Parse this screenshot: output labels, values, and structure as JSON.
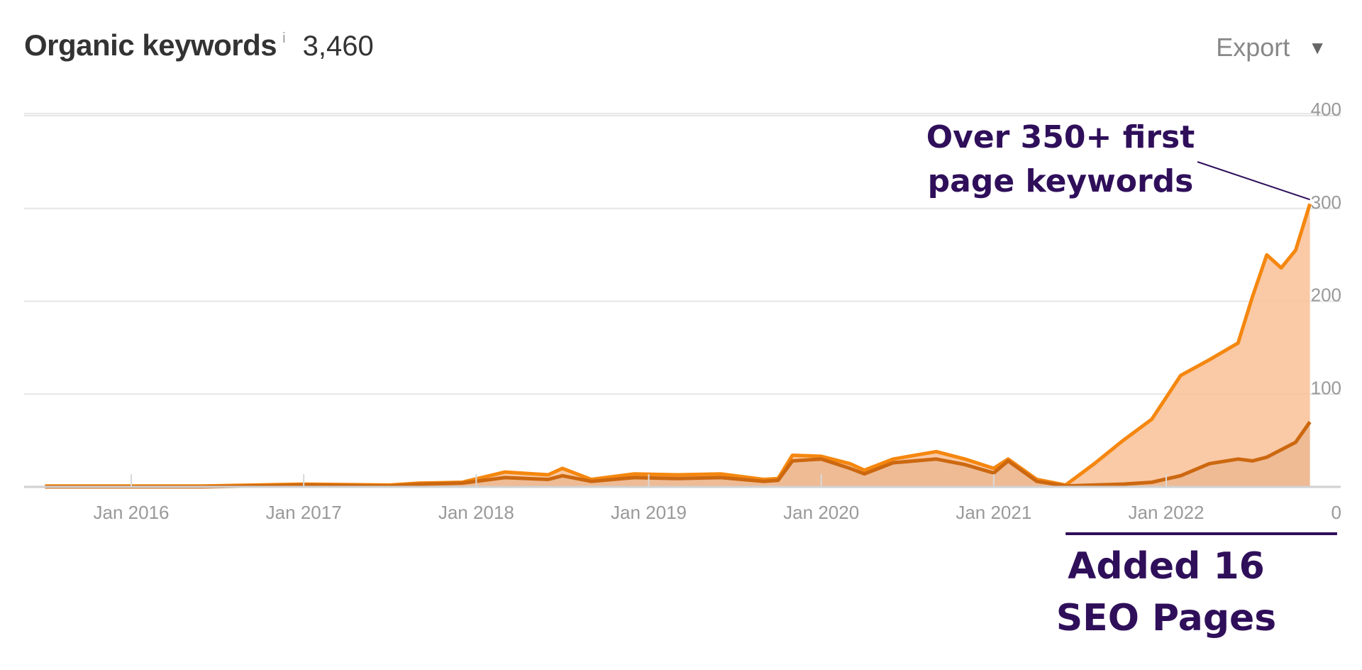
{
  "header": {
    "title": "Organic keywords",
    "info": "i",
    "count": "3,460",
    "export_label": "Export",
    "caret": "▼"
  },
  "colors": {
    "top3_line": "#f5870f",
    "top3_fill": "#f9c095",
    "rest_line": "#cc6810",
    "rest_fill": "#e6b38a",
    "grid": "#e6e6e6",
    "annotation": "#2f0f5a"
  },
  "chart_data": {
    "type": "area",
    "x_label": "",
    "y_label": "",
    "x_ticks": [
      "Jan 2016",
      "Jan 2017",
      "Jan 2018",
      "Jan 2019",
      "Jan 2020",
      "Jan 2021",
      "Jan 2022"
    ],
    "y_ticks": [
      "0",
      "100",
      "200",
      "300",
      "400"
    ],
    "ylim": [
      0,
      400
    ],
    "xlim": [
      "2015-06",
      "2022-12"
    ],
    "grid": true,
    "legend": "none",
    "series": [
      {
        "key": "top_positions",
        "points": [
          [
            "2015-07",
            1
          ],
          [
            "2016-06",
            1
          ],
          [
            "2017-01",
            3
          ],
          [
            "2017-07",
            2
          ],
          [
            "2017-09",
            4
          ],
          [
            "2017-12",
            5
          ],
          [
            "2018-03",
            16
          ],
          [
            "2018-06",
            13
          ],
          [
            "2018-07",
            20
          ],
          [
            "2018-09",
            8
          ],
          [
            "2018-12",
            14
          ],
          [
            "2019-03",
            13
          ],
          [
            "2019-06",
            14
          ],
          [
            "2019-09",
            8
          ],
          [
            "2019-10",
            9
          ],
          [
            "2019-11",
            34
          ],
          [
            "2020-01",
            33
          ],
          [
            "2020-03",
            25
          ],
          [
            "2020-04",
            18
          ],
          [
            "2020-06",
            30
          ],
          [
            "2020-09",
            38
          ],
          [
            "2020-11",
            30
          ],
          [
            "2021-01",
            20
          ],
          [
            "2021-02",
            30
          ],
          [
            "2021-04",
            8
          ],
          [
            "2021-06",
            2
          ],
          [
            "2021-08",
            25
          ],
          [
            "2021-10",
            50
          ],
          [
            "2021-12",
            73
          ],
          [
            "2022-02",
            120
          ],
          [
            "2022-04",
            137
          ],
          [
            "2022-06",
            155
          ],
          [
            "2022-07",
            205
          ],
          [
            "2022-08",
            250
          ],
          [
            "2022-09",
            236
          ],
          [
            "2022-10",
            255
          ],
          [
            "2022-11",
            305
          ]
        ]
      },
      {
        "key": "other_positions",
        "points": [
          [
            "2015-07",
            0
          ],
          [
            "2016-06",
            0
          ],
          [
            "2017-01",
            2
          ],
          [
            "2017-07",
            1
          ],
          [
            "2017-09",
            3
          ],
          [
            "2017-12",
            4
          ],
          [
            "2018-03",
            10
          ],
          [
            "2018-06",
            8
          ],
          [
            "2018-07",
            12
          ],
          [
            "2018-09",
            6
          ],
          [
            "2018-12",
            10
          ],
          [
            "2019-03",
            9
          ],
          [
            "2019-06",
            10
          ],
          [
            "2019-09",
            6
          ],
          [
            "2019-10",
            7
          ],
          [
            "2019-11",
            28
          ],
          [
            "2020-01",
            30
          ],
          [
            "2020-03",
            20
          ],
          [
            "2020-04",
            14
          ],
          [
            "2020-06",
            26
          ],
          [
            "2020-09",
            30
          ],
          [
            "2020-11",
            24
          ],
          [
            "2021-01",
            15
          ],
          [
            "2021-02",
            28
          ],
          [
            "2021-04",
            6
          ],
          [
            "2021-06",
            1
          ],
          [
            "2021-08",
            2
          ],
          [
            "2021-10",
            3
          ],
          [
            "2021-12",
            5
          ],
          [
            "2022-02",
            12
          ],
          [
            "2022-04",
            25
          ],
          [
            "2022-06",
            30
          ],
          [
            "2022-07",
            28
          ],
          [
            "2022-08",
            32
          ],
          [
            "2022-09",
            40
          ],
          [
            "2022-10",
            48
          ],
          [
            "2022-11",
            70
          ]
        ]
      }
    ],
    "annotations": {
      "peak": {
        "line1": "Over 350+ first",
        "line2": "page  keywords"
      },
      "period": {
        "line1": "Added 16",
        "line2": "SEO Pages",
        "from": "2021-06",
        "to": "2022-12"
      }
    }
  }
}
